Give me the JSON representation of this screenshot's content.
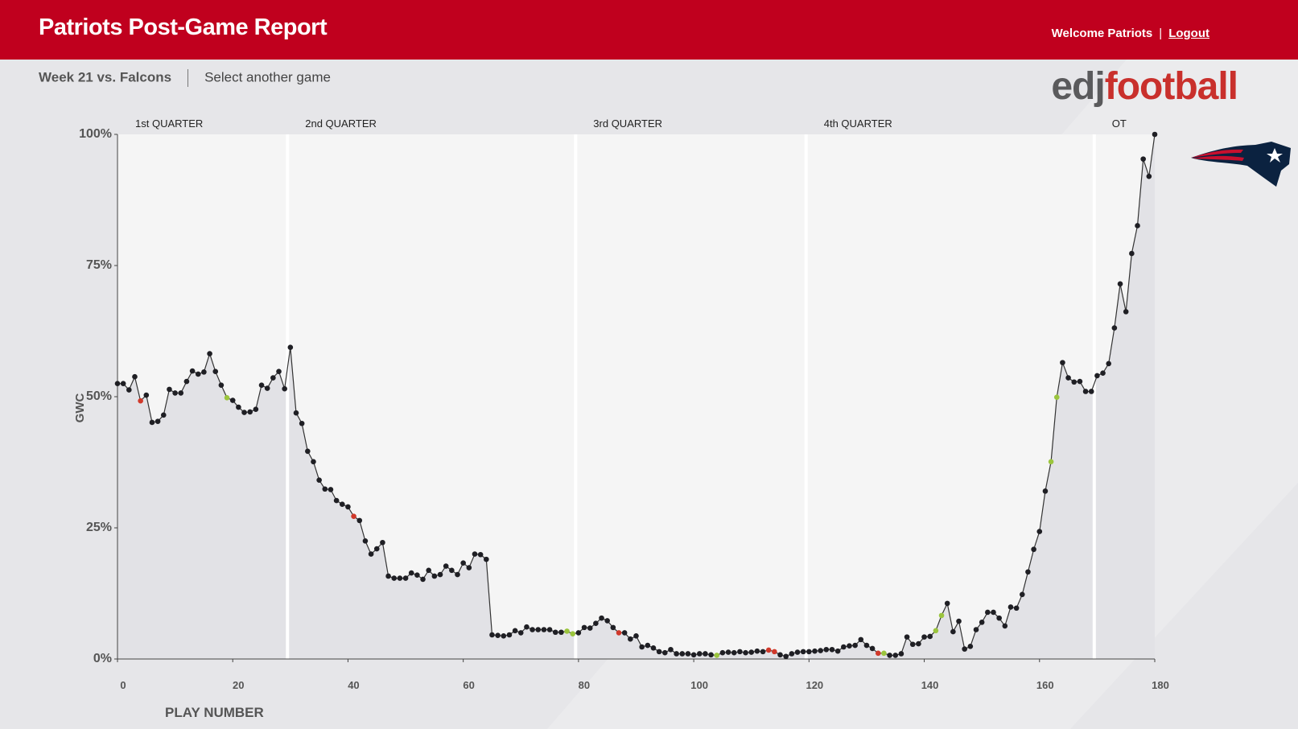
{
  "header": {
    "title": "Patriots Post-Game Report",
    "welcome": "Welcome Patriots",
    "logout": "Logout"
  },
  "nav": {
    "game": "Week 21 vs. Falcons",
    "select": "Select another game"
  },
  "logo": {
    "part1": "edj",
    "part2": "football"
  },
  "chart_data": {
    "type": "line",
    "x_label": "PLAY NUMBER",
    "y_label": "GWC",
    "xlim": [
      0,
      180
    ],
    "ylim": [
      0,
      100
    ],
    "xticks": [
      0,
      20,
      40,
      60,
      80,
      100,
      120,
      140,
      160,
      180
    ],
    "yticks": [
      {
        "value": 0,
        "label": "0%"
      },
      {
        "value": 25,
        "label": "25%"
      },
      {
        "value": 50,
        "label": "50%"
      },
      {
        "value": 75,
        "label": "75%"
      },
      {
        "value": 100,
        "label": "100%"
      }
    ],
    "quarters": [
      {
        "label": "1st QUARTER",
        "start": 0
      },
      {
        "label": "2nd QUARTER",
        "start": 29.5
      },
      {
        "label": "3rd QUARTER",
        "start": 79.5
      },
      {
        "label": "4th QUARTER",
        "start": 119.5
      },
      {
        "label": "OT",
        "start": 169.5
      }
    ],
    "color": "#1f1f24",
    "red_color": "#d0392b",
    "green_color": "#9bc53d",
    "red_points": [
      4,
      41,
      87,
      113,
      114,
      132
    ],
    "green_points": [
      19,
      78,
      79,
      104,
      133,
      142,
      143,
      162,
      163
    ],
    "values": [
      52.5,
      52.5,
      51.3,
      53.8,
      49.2,
      50.3,
      45.1,
      45.3,
      46.5,
      51.4,
      50.7,
      50.7,
      52.9,
      54.9,
      54.3,
      54.7,
      58.2,
      54.8,
      52.2,
      49.8,
      49.3,
      48.0,
      47.0,
      47.1,
      47.6,
      52.2,
      51.6,
      53.6,
      54.8,
      51.5,
      59.4,
      46.9,
      44.9,
      39.6,
      37.6,
      34.1,
      32.4,
      32.3,
      30.2,
      29.5,
      29.0,
      27.2,
      26.4,
      22.5,
      20.0,
      21.0,
      22.2,
      15.8,
      15.4,
      15.4,
      15.4,
      16.4,
      16.0,
      15.2,
      16.9,
      15.8,
      16.1,
      17.7,
      16.9,
      16.1,
      18.3,
      17.4,
      20.0,
      19.9,
      19.0,
      4.6,
      4.5,
      4.4,
      4.6,
      5.4,
      5.0,
      6.1,
      5.6,
      5.6,
      5.6,
      5.6,
      5.1,
      5.1,
      5.3,
      4.8,
      5.0,
      6.0,
      5.9,
      6.8,
      7.8,
      7.3,
      6.0,
      5.0,
      5.0,
      3.8,
      4.4,
      2.3,
      2.6,
      2.1,
      1.4,
      1.2,
      1.8,
      1.0,
      1.0,
      1.0,
      0.8,
      1.0,
      1.0,
      0.8,
      0.7,
      1.2,
      1.3,
      1.2,
      1.4,
      1.2,
      1.3,
      1.5,
      1.4,
      1.7,
      1.4,
      0.8,
      0.5,
      1.0,
      1.3,
      1.4,
      1.4,
      1.5,
      1.6,
      1.8,
      1.8,
      1.5,
      2.3,
      2.5,
      2.6,
      3.7,
      2.6,
      2.0,
      1.1,
      1.1,
      0.7,
      0.7,
      1.0,
      4.2,
      2.8,
      2.9,
      4.2,
      4.3,
      5.4,
      8.3,
      10.6,
      5.2,
      7.2,
      1.9,
      2.4,
      5.6,
      7.0,
      8.9,
      8.9,
      7.8,
      6.3,
      9.9,
      9.7,
      12.3,
      16.6,
      20.9,
      24.3,
      32.0,
      37.6,
      49.9,
      56.5,
      53.6,
      52.8,
      52.9,
      51.0,
      51.0,
      54.0,
      54.5,
      56.3,
      63.1,
      71.5,
      66.2,
      77.3,
      82.6,
      95.3,
      92.0,
      100
    ]
  }
}
